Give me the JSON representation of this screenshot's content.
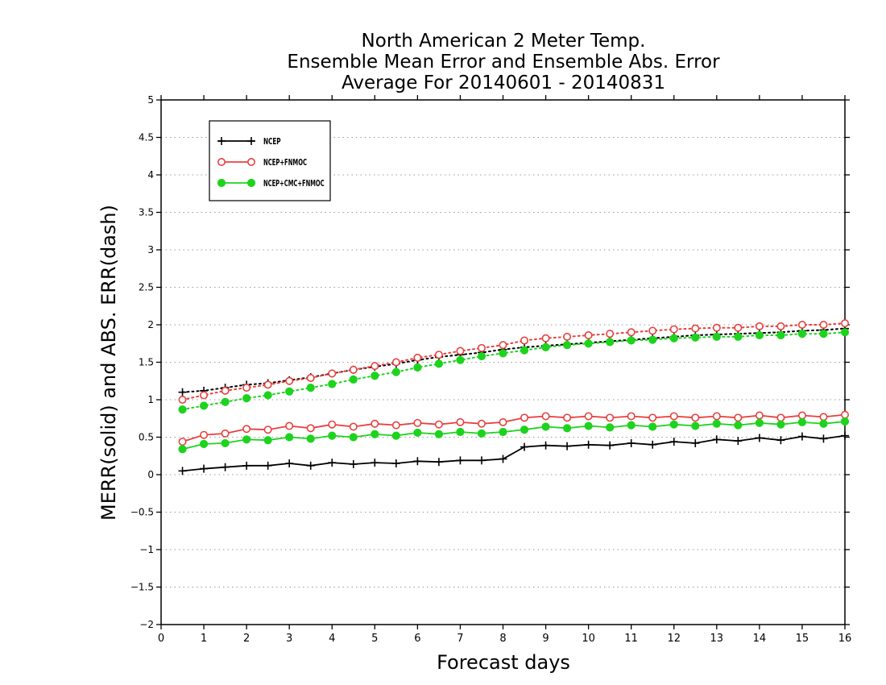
{
  "chart_data": {
    "type": "line",
    "title": [
      "North American 2 Meter Temp.",
      "Ensemble Mean Error and Ensemble Abs. Error",
      "Average For 20140601 - 20140831"
    ],
    "xlabel": "Forecast days",
    "ylabel": "MERR(solid) and ABS. ERR(dash)",
    "xlim": [
      0,
      16
    ],
    "ylim": [
      -2,
      5
    ],
    "xticks": [
      0,
      1,
      2,
      3,
      4,
      5,
      6,
      7,
      8,
      9,
      10,
      11,
      12,
      13,
      14,
      15,
      16
    ],
    "xtick_labels": [
      "0",
      "1",
      "2",
      "3",
      "4",
      "5",
      "6",
      "7",
      "8",
      "9",
      "10",
      "11",
      "12",
      "13",
      "14",
      "15",
      "16"
    ],
    "yticks": [
      -2,
      -1.5,
      -1,
      -0.5,
      0,
      0.5,
      1,
      1.5,
      2,
      2.5,
      3,
      3.5,
      4,
      4.5,
      5
    ],
    "ytick_labels": [
      "−2",
      "−1.5",
      "−1",
      "−0.5",
      "0",
      "0.5",
      "1",
      "1.5",
      "2",
      "2.5",
      "3",
      "3.5",
      "4",
      "4.5",
      "5"
    ],
    "grid": "horizontal dotted",
    "legend_position": "top-left",
    "x": [
      0.5,
      1,
      1.5,
      2,
      2.5,
      3,
      3.5,
      4,
      4.5,
      5,
      5.5,
      6,
      6.5,
      7,
      7.5,
      8,
      8.5,
      9,
      9.5,
      10,
      10.5,
      11,
      11.5,
      12,
      12.5,
      13,
      13.5,
      14,
      14.5,
      15,
      15.5,
      16
    ],
    "series": [
      {
        "name": "NCEP",
        "color": "#000000",
        "marker": "plus",
        "merr": [
          0.05,
          0.08,
          0.1,
          0.12,
          0.12,
          0.15,
          0.12,
          0.16,
          0.14,
          0.16,
          0.15,
          0.18,
          0.17,
          0.19,
          0.19,
          0.21,
          0.37,
          0.39,
          0.38,
          0.4,
          0.39,
          0.42,
          0.4,
          0.44,
          0.42,
          0.47,
          0.45,
          0.49,
          0.46,
          0.51,
          0.48,
          0.52
        ],
        "abs_err": [
          1.1,
          1.12,
          1.16,
          1.2,
          1.22,
          1.26,
          1.3,
          1.35,
          1.4,
          1.44,
          1.48,
          1.53,
          1.57,
          1.6,
          1.63,
          1.67,
          1.7,
          1.72,
          1.74,
          1.76,
          1.78,
          1.8,
          1.82,
          1.84,
          1.86,
          1.87,
          1.88,
          1.89,
          1.9,
          1.92,
          1.93,
          1.95
        ]
      },
      {
        "name": "NCEP+FNMOC",
        "color": "#e8403f",
        "marker": "open-circle",
        "merr": [
          0.44,
          0.53,
          0.55,
          0.61,
          0.6,
          0.65,
          0.62,
          0.67,
          0.64,
          0.68,
          0.66,
          0.69,
          0.67,
          0.7,
          0.68,
          0.7,
          0.76,
          0.78,
          0.76,
          0.78,
          0.76,
          0.78,
          0.76,
          0.78,
          0.76,
          0.78,
          0.76,
          0.79,
          0.76,
          0.79,
          0.77,
          0.8
        ],
        "abs_err": [
          1.0,
          1.06,
          1.12,
          1.16,
          1.2,
          1.25,
          1.29,
          1.35,
          1.4,
          1.45,
          1.5,
          1.56,
          1.6,
          1.65,
          1.69,
          1.73,
          1.79,
          1.82,
          1.84,
          1.86,
          1.88,
          1.9,
          1.92,
          1.94,
          1.95,
          1.96,
          1.96,
          1.98,
          1.98,
          2.0,
          2.0,
          2.02
        ]
      },
      {
        "name": "NCEP+CMC+FNMOC",
        "color": "#1ed31e",
        "marker": "filled-circle",
        "merr": [
          0.34,
          0.41,
          0.42,
          0.47,
          0.46,
          0.5,
          0.48,
          0.52,
          0.5,
          0.54,
          0.52,
          0.56,
          0.54,
          0.57,
          0.55,
          0.57,
          0.6,
          0.64,
          0.62,
          0.65,
          0.63,
          0.66,
          0.64,
          0.67,
          0.65,
          0.68,
          0.66,
          0.69,
          0.67,
          0.7,
          0.68,
          0.71
        ],
        "abs_err": [
          0.87,
          0.92,
          0.97,
          1.02,
          1.06,
          1.11,
          1.16,
          1.21,
          1.27,
          1.32,
          1.37,
          1.43,
          1.48,
          1.53,
          1.58,
          1.62,
          1.66,
          1.7,
          1.73,
          1.75,
          1.77,
          1.79,
          1.8,
          1.82,
          1.83,
          1.84,
          1.84,
          1.86,
          1.86,
          1.88,
          1.88,
          1.9
        ]
      }
    ]
  }
}
